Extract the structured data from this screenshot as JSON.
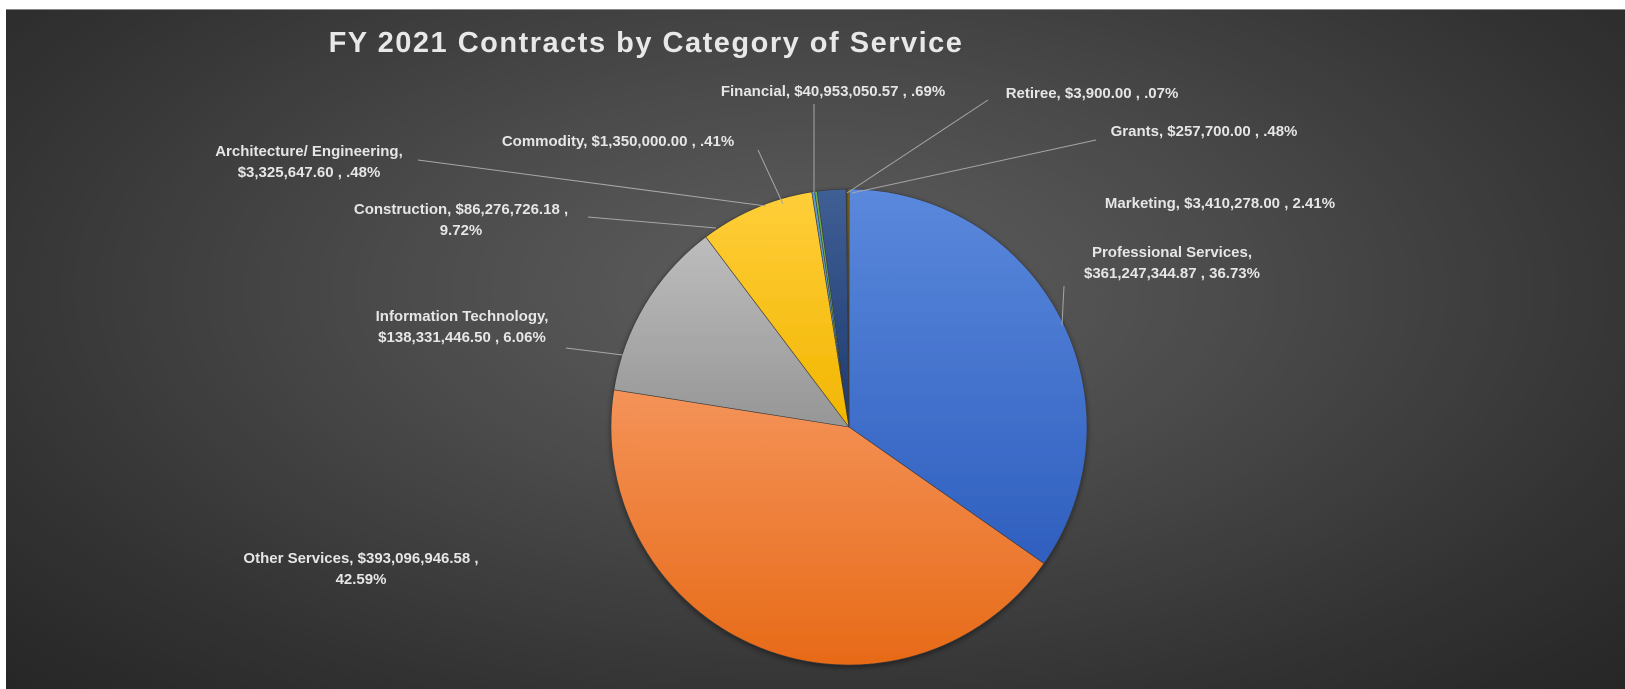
{
  "chart_data": {
    "type": "pie",
    "title": "FY 2021 Contracts by Category of Service",
    "slices": [
      {
        "name": "Professional Services",
        "value": 361247344.87,
        "percent": 36.73,
        "label_line1": "Professional Services,",
        "label_line2": "$361,247,344.87 , 36.73%",
        "color": "#3e6fcf"
      },
      {
        "name": "Other Services",
        "value": 393096946.58,
        "percent": 42.59,
        "label_line1": "Other Services,  $393,096,946.58 ,",
        "label_line2": "42.59%",
        "color": "#ed7a2d"
      },
      {
        "name": "Information Technology",
        "value": 138331446.5,
        "percent": 6.06,
        "label_line1": "Information Technology,",
        "label_line2": "$138,331,446.50 , 6.06%",
        "color": "#a5a5a5"
      },
      {
        "name": "Construction",
        "value": 86276726.18,
        "percent": 9.72,
        "label_line1": "Construction,  $86,276,726.18 ,",
        "label_line2": "9.72%",
        "color": "#ffc000"
      },
      {
        "name": "Architecture/ Engineering",
        "value": 3325647.6,
        "percent": 0.48,
        "label_line1": "Architecture/ Engineering,",
        "label_line2": "$3,325,647.60 , .48%",
        "color": "#5b9bd5"
      },
      {
        "name": "Commodity",
        "value": 1350000.0,
        "percent": 0.41,
        "label_line1": "Commodity,  $1,350,000.00 , .41%",
        "label_line2": "",
        "color": "#70ad47"
      },
      {
        "name": "Financial",
        "value": 40953050.57,
        "percent": 0.69,
        "label_line1": "Financial,  $40,953,050.57 , .69%",
        "label_line2": "",
        "color": "#264478"
      },
      {
        "name": "Retiree",
        "value": 3900.0,
        "percent": 0.07,
        "label_line1": "Retiree,  $3,900.00 , .07%",
        "label_line2": "",
        "color": "#9e480e"
      },
      {
        "name": "Grants",
        "value": 257700.0,
        "percent": 0.48,
        "label_line1": "Grants,  $257,700.00 , .48%",
        "label_line2": "",
        "color": "#636363"
      },
      {
        "name": "Marketing",
        "value": 3410278.0,
        "percent": 2.41,
        "label_line1": "Marketing,  $3,410,278.00 , 2.41%",
        "label_line2": "",
        "color": "#997300"
      }
    ]
  }
}
